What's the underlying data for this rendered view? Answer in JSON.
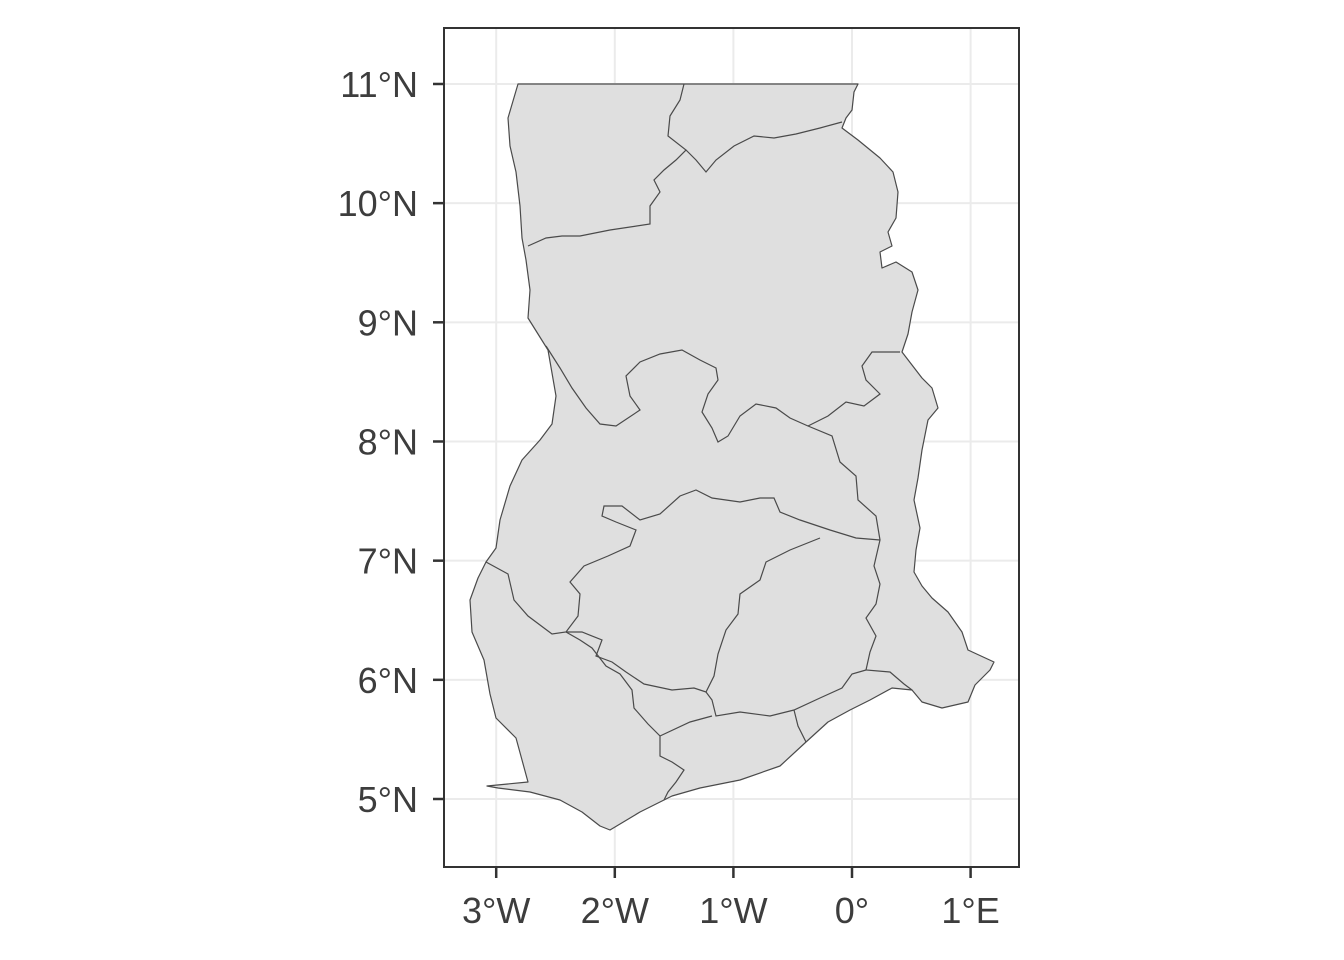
{
  "map": {
    "country": "Ghana",
    "x_axis": {
      "ticks": [
        {
          "value": -3,
          "label": "3°W"
        },
        {
          "value": -2,
          "label": "2°W"
        },
        {
          "value": -1,
          "label": "1°W"
        },
        {
          "value": 0,
          "label": "0°"
        },
        {
          "value": 1,
          "label": "1°E"
        }
      ],
      "range": [
        -3.45,
        1.4
      ]
    },
    "y_axis": {
      "ticks": [
        {
          "value": 5,
          "label": "5°N"
        },
        {
          "value": 6,
          "label": "6°N"
        },
        {
          "value": 7,
          "label": "7°N"
        },
        {
          "value": 8,
          "label": "8°N"
        },
        {
          "value": 9,
          "label": "9°N"
        },
        {
          "value": 10,
          "label": "10°N"
        },
        {
          "value": 11,
          "label": "11°N"
        }
      ],
      "range": [
        4.45,
        11.5
      ]
    },
    "grid": true,
    "colors": {
      "fill": "#dfdfdf",
      "border": "#4a4a4a",
      "grid": "#ebebeb",
      "panel_border": "#333333",
      "text": "#3d3d3d"
    }
  }
}
